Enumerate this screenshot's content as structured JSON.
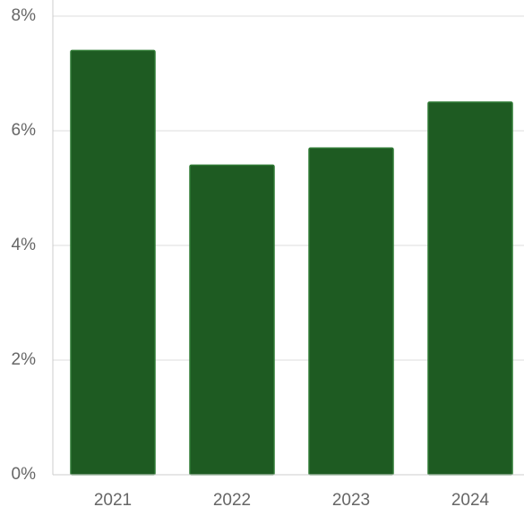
{
  "chart_data": {
    "type": "bar",
    "title": "",
    "xlabel": "",
    "ylabel": "",
    "categories": [
      "2021",
      "2022",
      "2023",
      "2024"
    ],
    "values": [
      7.4,
      5.4,
      5.7,
      6.5
    ],
    "ylim": [
      0,
      8
    ],
    "y_ticks": [
      0,
      2,
      4,
      6,
      8
    ],
    "y_tick_labels": [
      "0%",
      "2%",
      "4%",
      "6%",
      "8%"
    ],
    "grid": true,
    "legend": "none",
    "colors": {
      "bar_fill": "#1e5b22",
      "bar_stroke": "#2f7a34",
      "grid": "#dddddd",
      "axis": "#cccccc",
      "label": "#666666"
    }
  }
}
